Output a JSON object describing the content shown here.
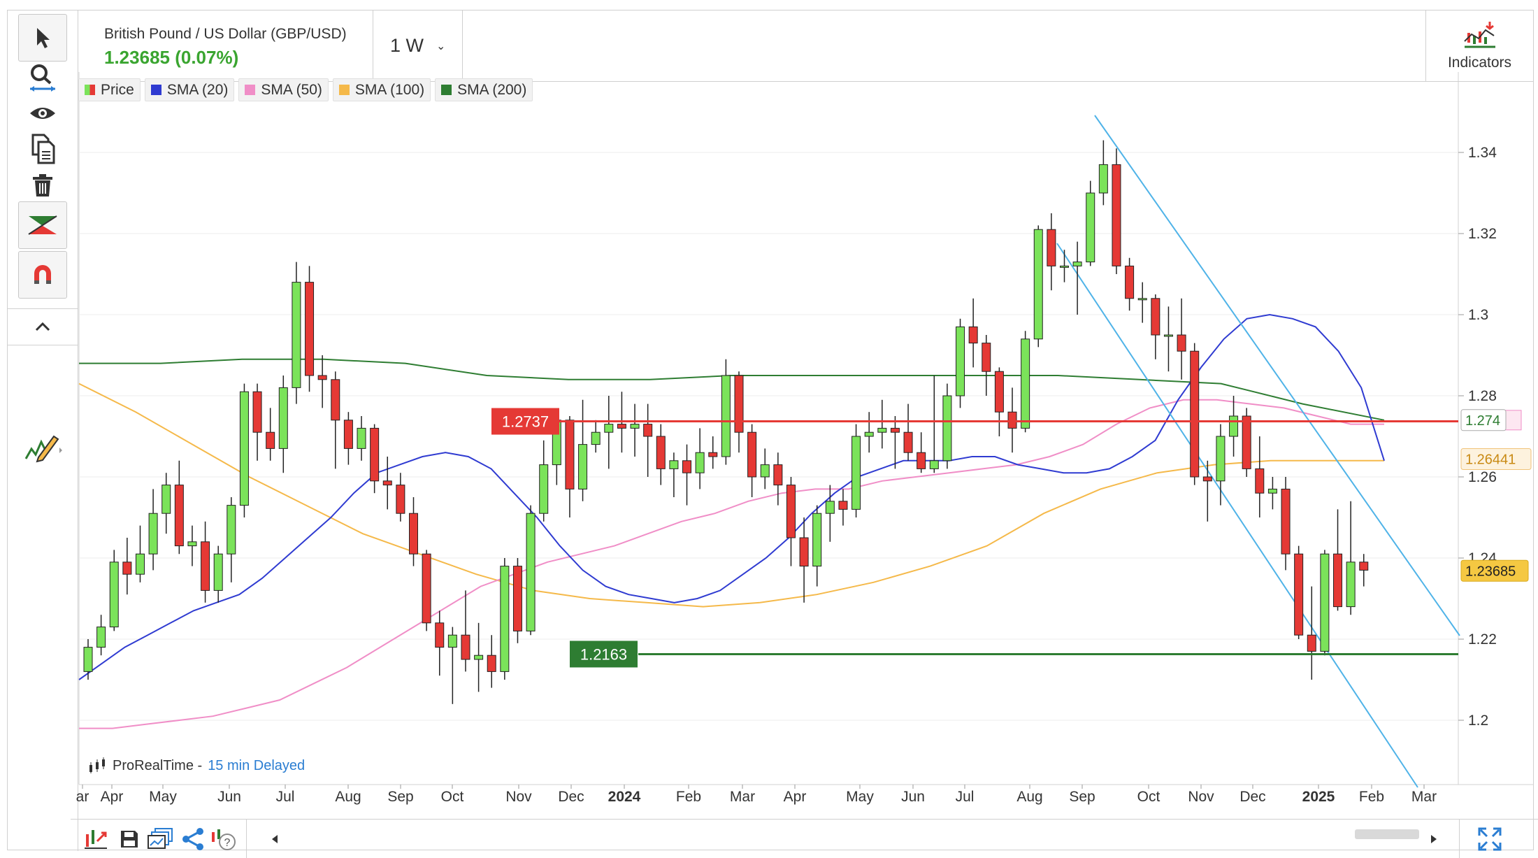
{
  "instrument": {
    "name": "British Pound / US Dollar (GBP/USD)",
    "price_change": "1.23685 (0.07%)",
    "timeframe": "1 W"
  },
  "indicators_button": {
    "label": "Indicators"
  },
  "legend": [
    {
      "label": "Price",
      "color": "#e53935"
    },
    {
      "label": "SMA (20)",
      "color": "#2f3bd1"
    },
    {
      "label": "SMA (50)",
      "color": "#f08ec7"
    },
    {
      "label": "SMA (100)",
      "color": "#f5b94a"
    },
    {
      "label": "SMA (200)",
      "color": "#2e7d32"
    }
  ],
  "watermark": {
    "brand": "ProRealTime -",
    "delay": "15 min Delayed"
  },
  "toolbar": [
    "pointer-tool",
    "zoom-tool",
    "eye-tool",
    "copy-tool",
    "trash-tool",
    "drawing-tool",
    "magnet-tool",
    "collapse-tool",
    "pencil-tool"
  ],
  "chart_data": {
    "type": "candlestick",
    "ylim": [
      1.185,
      1.35
    ],
    "y_ticks": [
      "1.34",
      "1.32",
      "1.3",
      "1.28",
      "1.26",
      "1.24",
      "1.22",
      "1.2"
    ],
    "x_ticks": [
      "ar",
      "Apr",
      "May",
      "Jun",
      "Jul",
      "Aug",
      "Sep",
      "Oct",
      "Nov",
      "Dec",
      "2024",
      "Feb",
      "Mar",
      "Apr",
      "May",
      "Jun",
      "Jul",
      "Aug",
      "Sep",
      "Oct",
      "Nov",
      "Dec",
      "2025",
      "Feb",
      "Mar"
    ],
    "candles": [
      {
        "o": 1.212,
        "c": 1.218,
        "h": 1.22,
        "l": 1.21
      },
      {
        "o": 1.218,
        "c": 1.223,
        "h": 1.226,
        "l": 1.216
      },
      {
        "o": 1.223,
        "c": 1.239,
        "h": 1.242,
        "l": 1.222
      },
      {
        "o": 1.239,
        "c": 1.236,
        "h": 1.245,
        "l": 1.231
      },
      {
        "o": 1.236,
        "c": 1.241,
        "h": 1.248,
        "l": 1.234
      },
      {
        "o": 1.241,
        "c": 1.251,
        "h": 1.257,
        "l": 1.237
      },
      {
        "o": 1.251,
        "c": 1.258,
        "h": 1.261,
        "l": 1.246
      },
      {
        "o": 1.258,
        "c": 1.243,
        "h": 1.264,
        "l": 1.241
      },
      {
        "o": 1.243,
        "c": 1.244,
        "h": 1.248,
        "l": 1.238
      },
      {
        "o": 1.244,
        "c": 1.232,
        "h": 1.249,
        "l": 1.229
      },
      {
        "o": 1.232,
        "c": 1.241,
        "h": 1.243,
        "l": 1.229
      },
      {
        "o": 1.241,
        "c": 1.253,
        "h": 1.255,
        "l": 1.234
      },
      {
        "o": 1.253,
        "c": 1.281,
        "h": 1.283,
        "l": 1.25
      },
      {
        "o": 1.281,
        "c": 1.271,
        "h": 1.283,
        "l": 1.264
      },
      {
        "o": 1.271,
        "c": 1.267,
        "h": 1.277,
        "l": 1.264
      },
      {
        "o": 1.267,
        "c": 1.282,
        "h": 1.285,
        "l": 1.261
      },
      {
        "o": 1.282,
        "c": 1.308,
        "h": 1.313,
        "l": 1.278
      },
      {
        "o": 1.308,
        "c": 1.285,
        "h": 1.312,
        "l": 1.281
      },
      {
        "o": 1.285,
        "c": 1.284,
        "h": 1.29,
        "l": 1.277
      },
      {
        "o": 1.284,
        "c": 1.274,
        "h": 1.286,
        "l": 1.262
      },
      {
        "o": 1.274,
        "c": 1.267,
        "h": 1.276,
        "l": 1.263
      },
      {
        "o": 1.267,
        "c": 1.272,
        "h": 1.275,
        "l": 1.264
      },
      {
        "o": 1.272,
        "c": 1.259,
        "h": 1.273,
        "l": 1.256
      },
      {
        "o": 1.259,
        "c": 1.258,
        "h": 1.265,
        "l": 1.252
      },
      {
        "o": 1.258,
        "c": 1.251,
        "h": 1.261,
        "l": 1.249
      },
      {
        "o": 1.251,
        "c": 1.241,
        "h": 1.255,
        "l": 1.238
      },
      {
        "o": 1.241,
        "c": 1.224,
        "h": 1.242,
        "l": 1.222
      },
      {
        "o": 1.224,
        "c": 1.218,
        "h": 1.227,
        "l": 1.211
      },
      {
        "o": 1.218,
        "c": 1.221,
        "h": 1.223,
        "l": 1.204
      },
      {
        "o": 1.221,
        "c": 1.215,
        "h": 1.232,
        "l": 1.212
      },
      {
        "o": 1.215,
        "c": 1.216,
        "h": 1.224,
        "l": 1.207
      },
      {
        "o": 1.216,
        "c": 1.212,
        "h": 1.221,
        "l": 1.208
      },
      {
        "o": 1.212,
        "c": 1.238,
        "h": 1.24,
        "l": 1.21
      },
      {
        "o": 1.238,
        "c": 1.222,
        "h": 1.24,
        "l": 1.219
      },
      {
        "o": 1.222,
        "c": 1.251,
        "h": 1.253,
        "l": 1.221
      },
      {
        "o": 1.251,
        "c": 1.263,
        "h": 1.269,
        "l": 1.249
      },
      {
        "o": 1.263,
        "c": 1.274,
        "h": 1.276,
        "l": 1.258
      },
      {
        "o": 1.274,
        "c": 1.257,
        "h": 1.275,
        "l": 1.25
      },
      {
        "o": 1.257,
        "c": 1.268,
        "h": 1.279,
        "l": 1.254
      },
      {
        "o": 1.268,
        "c": 1.271,
        "h": 1.274,
        "l": 1.266
      },
      {
        "o": 1.271,
        "c": 1.273,
        "h": 1.28,
        "l": 1.262
      },
      {
        "o": 1.273,
        "c": 1.272,
        "h": 1.281,
        "l": 1.266
      },
      {
        "o": 1.272,
        "c": 1.273,
        "h": 1.278,
        "l": 1.265
      },
      {
        "o": 1.273,
        "c": 1.27,
        "h": 1.278,
        "l": 1.26
      },
      {
        "o": 1.27,
        "c": 1.262,
        "h": 1.273,
        "l": 1.258
      },
      {
        "o": 1.262,
        "c": 1.264,
        "h": 1.266,
        "l": 1.255
      },
      {
        "o": 1.264,
        "c": 1.261,
        "h": 1.268,
        "l": 1.253
      },
      {
        "o": 1.261,
        "c": 1.266,
        "h": 1.272,
        "l": 1.257
      },
      {
        "o": 1.266,
        "c": 1.265,
        "h": 1.27,
        "l": 1.262
      },
      {
        "o": 1.265,
        "c": 1.285,
        "h": 1.289,
        "l": 1.263
      },
      {
        "o": 1.285,
        "c": 1.271,
        "h": 1.286,
        "l": 1.266
      },
      {
        "o": 1.271,
        "c": 1.26,
        "h": 1.273,
        "l": 1.255
      },
      {
        "o": 1.26,
        "c": 1.263,
        "h": 1.267,
        "l": 1.257
      },
      {
        "o": 1.263,
        "c": 1.258,
        "h": 1.266,
        "l": 1.253
      },
      {
        "o": 1.258,
        "c": 1.245,
        "h": 1.26,
        "l": 1.238
      },
      {
        "o": 1.245,
        "c": 1.238,
        "h": 1.25,
        "l": 1.229
      },
      {
        "o": 1.238,
        "c": 1.251,
        "h": 1.253,
        "l": 1.233
      },
      {
        "o": 1.251,
        "c": 1.254,
        "h": 1.258,
        "l": 1.244
      },
      {
        "o": 1.254,
        "c": 1.252,
        "h": 1.257,
        "l": 1.248
      },
      {
        "o": 1.252,
        "c": 1.27,
        "h": 1.273,
        "l": 1.25
      },
      {
        "o": 1.27,
        "c": 1.271,
        "h": 1.276,
        "l": 1.266
      },
      {
        "o": 1.271,
        "c": 1.272,
        "h": 1.279,
        "l": 1.267
      },
      {
        "o": 1.272,
        "c": 1.271,
        "h": 1.275,
        "l": 1.262
      },
      {
        "o": 1.271,
        "c": 1.266,
        "h": 1.278,
        "l": 1.264
      },
      {
        "o": 1.266,
        "c": 1.262,
        "h": 1.271,
        "l": 1.261
      },
      {
        "o": 1.262,
        "c": 1.264,
        "h": 1.285,
        "l": 1.261
      },
      {
        "o": 1.264,
        "c": 1.28,
        "h": 1.283,
        "l": 1.262
      },
      {
        "o": 1.28,
        "c": 1.297,
        "h": 1.299,
        "l": 1.277
      },
      {
        "o": 1.297,
        "c": 1.293,
        "h": 1.304,
        "l": 1.287
      },
      {
        "o": 1.293,
        "c": 1.286,
        "h": 1.295,
        "l": 1.28
      },
      {
        "o": 1.286,
        "c": 1.276,
        "h": 1.287,
        "l": 1.27
      },
      {
        "o": 1.276,
        "c": 1.272,
        "h": 1.282,
        "l": 1.266
      },
      {
        "o": 1.272,
        "c": 1.294,
        "h": 1.296,
        "l": 1.271
      },
      {
        "o": 1.294,
        "c": 1.321,
        "h": 1.322,
        "l": 1.292
      },
      {
        "o": 1.321,
        "c": 1.312,
        "h": 1.325,
        "l": 1.306
      },
      {
        "o": 1.312,
        "c": 1.312,
        "h": 1.316,
        "l": 1.308
      },
      {
        "o": 1.312,
        "c": 1.313,
        "h": 1.318,
        "l": 1.3
      },
      {
        "o": 1.313,
        "c": 1.33,
        "h": 1.333,
        "l": 1.312
      },
      {
        "o": 1.33,
        "c": 1.337,
        "h": 1.343,
        "l": 1.327
      },
      {
        "o": 1.337,
        "c": 1.312,
        "h": 1.341,
        "l": 1.31
      },
      {
        "o": 1.312,
        "c": 1.304,
        "h": 1.314,
        "l": 1.301
      },
      {
        "o": 1.304,
        "c": 1.304,
        "h": 1.308,
        "l": 1.298
      },
      {
        "o": 1.304,
        "c": 1.295,
        "h": 1.305,
        "l": 1.289
      },
      {
        "o": 1.295,
        "c": 1.295,
        "h": 1.302,
        "l": 1.286
      },
      {
        "o": 1.295,
        "c": 1.291,
        "h": 1.304,
        "l": 1.284
      },
      {
        "o": 1.291,
        "c": 1.26,
        "h": 1.293,
        "l": 1.258
      },
      {
        "o": 1.26,
        "c": 1.259,
        "h": 1.264,
        "l": 1.249
      },
      {
        "o": 1.259,
        "c": 1.27,
        "h": 1.273,
        "l": 1.253
      },
      {
        "o": 1.27,
        "c": 1.275,
        "h": 1.28,
        "l": 1.265
      },
      {
        "o": 1.275,
        "c": 1.262,
        "h": 1.277,
        "l": 1.26
      },
      {
        "o": 1.262,
        "c": 1.256,
        "h": 1.27,
        "l": 1.25
      },
      {
        "o": 1.256,
        "c": 1.257,
        "h": 1.26,
        "l": 1.252
      },
      {
        "o": 1.257,
        "c": 1.241,
        "h": 1.26,
        "l": 1.237
      },
      {
        "o": 1.241,
        "c": 1.221,
        "h": 1.243,
        "l": 1.22
      },
      {
        "o": 1.221,
        "c": 1.217,
        "h": 1.233,
        "l": 1.21
      },
      {
        "o": 1.217,
        "c": 1.241,
        "h": 1.242,
        "l": 1.216
      },
      {
        "o": 1.241,
        "c": 1.228,
        "h": 1.252,
        "l": 1.227
      },
      {
        "o": 1.228,
        "c": 1.239,
        "h": 1.254,
        "l": 1.226
      },
      {
        "o": 1.239,
        "c": 1.237,
        "h": 1.241,
        "l": 1.233
      }
    ],
    "sma20": [
      1.21,
      1.214,
      1.218,
      1.221,
      1.224,
      1.227,
      1.229,
      1.231,
      1.235,
      1.24,
      1.245,
      1.25,
      1.256,
      1.261,
      1.263,
      1.265,
      1.266,
      1.265,
      1.262,
      1.256,
      1.25,
      1.243,
      1.237,
      1.233,
      1.231,
      1.23,
      1.229,
      1.23,
      1.232,
      1.236,
      1.24,
      1.245,
      1.251,
      1.256,
      1.26,
      1.262,
      1.264,
      1.264,
      1.264,
      1.265,
      1.265,
      1.263,
      1.262,
      1.261,
      1.261,
      1.262,
      1.265,
      1.269,
      1.279,
      1.287,
      1.294,
      1.299,
      1.3,
      1.299,
      1.297,
      1.291,
      1.282,
      1.264
    ],
    "sma50": [
      1.198,
      1.198,
      1.199,
      1.2,
      1.201,
      1.203,
      1.205,
      1.209,
      1.213,
      1.218,
      1.223,
      1.228,
      1.233,
      1.236,
      1.239,
      1.241,
      1.243,
      1.246,
      1.249,
      1.251,
      1.254,
      1.256,
      1.257,
      1.257,
      1.259,
      1.26,
      1.261,
      1.262,
      1.263,
      1.265,
      1.268,
      1.273,
      1.277,
      1.279,
      1.279,
      1.278,
      1.277,
      1.275,
      1.273,
      1.273
    ],
    "sma100": [
      1.283,
      1.276,
      1.268,
      1.26,
      1.253,
      1.246,
      1.241,
      1.236,
      1.232,
      1.23,
      1.229,
      1.228,
      1.229,
      1.231,
      1.234,
      1.238,
      1.243,
      1.251,
      1.257,
      1.261,
      1.263,
      1.264,
      1.264,
      1.264
    ],
    "sma200": [
      1.288,
      1.288,
      1.289,
      1.289,
      1.288,
      1.285,
      1.284,
      1.284,
      1.285,
      1.285,
      1.285,
      1.285,
      1.285,
      1.284,
      1.283,
      1.278,
      1.274
    ],
    "levels": [
      {
        "value": 1.2737,
        "label": "1.2737",
        "color": "#e53935"
      },
      {
        "value": 1.2163,
        "label": "1.2163",
        "color": "#2e7d32"
      }
    ],
    "price_tags": [
      {
        "label": "1.274",
        "value": 1.274
      },
      {
        "label": "1.26441",
        "value": 1.2644
      },
      {
        "label": "1.23685",
        "value": 1.23685
      }
    ]
  }
}
